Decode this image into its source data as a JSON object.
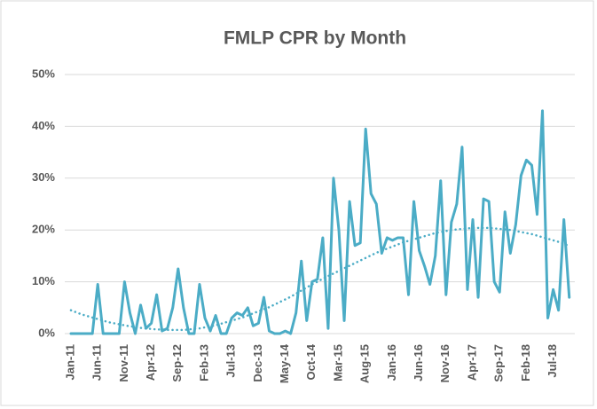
{
  "chart_data": {
    "type": "line",
    "title": "FMLP CPR by Month",
    "categories": [
      "Jan-11",
      null,
      null,
      null,
      null,
      "Jun-11",
      null,
      null,
      null,
      null,
      "Nov-11",
      null,
      null,
      null,
      null,
      "Apr-12",
      null,
      null,
      null,
      null,
      "Sep-12",
      null,
      null,
      null,
      null,
      "Feb-13",
      null,
      null,
      null,
      null,
      "Jul-13",
      null,
      null,
      null,
      null,
      "Dec-13",
      null,
      null,
      null,
      null,
      "May-14",
      null,
      null,
      null,
      null,
      "Oct-14",
      null,
      null,
      null,
      null,
      "Mar-15",
      null,
      null,
      null,
      null,
      "Aug-15",
      null,
      null,
      null,
      null,
      "Jan-16",
      null,
      null,
      null,
      null,
      "Jun-16",
      null,
      null,
      null,
      null,
      "Nov-16",
      null,
      null,
      null,
      null,
      "Apr-17",
      null,
      null,
      null,
      null,
      "Sep-17",
      null,
      null,
      null,
      null,
      "Feb-18",
      null,
      null,
      null,
      null,
      "Jul-18",
      null,
      null,
      null
    ],
    "series": [
      {
        "color": "#4bacc6",
        "values": [
          0,
          0,
          0,
          0,
          0,
          9.5,
          0,
          0,
          0,
          0,
          10,
          4,
          0,
          5.5,
          1,
          2,
          7.5,
          0.5,
          1,
          5,
          12.5,
          5,
          0,
          0,
          9.5,
          3,
          0.5,
          3.5,
          0,
          0,
          3,
          4,
          3.5,
          5,
          1.5,
          2,
          7,
          0.5,
          0,
          0,
          0.5,
          0,
          4,
          14,
          2.5,
          10,
          10.5,
          18.5,
          1,
          30,
          20,
          2.5,
          25.5,
          17,
          17.5,
          39.5,
          27,
          25,
          15.5,
          18.5,
          18,
          18.5,
          18.5,
          7.5,
          25.5,
          16,
          13,
          9.5,
          15,
          29.5,
          7.5,
          21.5,
          25,
          36,
          8.5,
          22,
          7,
          26,
          25.5,
          10,
          8,
          23.5,
          15.5,
          21,
          30.5,
          33.5,
          32.5,
          23,
          43,
          3,
          8.5,
          4.5,
          22,
          7
        ]
      },
      {
        "color": "#4bacc6",
        "dotted": true,
        "values": [
          4.5,
          4.1,
          3.7,
          3.4,
          3.1,
          2.8,
          2.5,
          2.2,
          2.0,
          1.8,
          1.6,
          1.4,
          1.3,
          1.1,
          1.0,
          0.9,
          0.8,
          0.8,
          0.7,
          0.7,
          0.7,
          0.7,
          0.8,
          0.9,
          1.0,
          1.2,
          1.4,
          1.6,
          1.9,
          2.2,
          2.5,
          2.8,
          3.1,
          3.5,
          3.9,
          4.3,
          4.7,
          5.1,
          5.6,
          6.1,
          6.6,
          7.1,
          7.7,
          8.3,
          8.9,
          9.5,
          10.0,
          10.6,
          11.1,
          11.6,
          12.1,
          12.6,
          13.1,
          13.6,
          14.1,
          14.6,
          15.1,
          15.6,
          16.0,
          16.4,
          16.8,
          17.2,
          17.6,
          17.9,
          18.2,
          18.5,
          18.8,
          19.1,
          19.4,
          19.6,
          19.8,
          20.0,
          20.1,
          20.2,
          20.3,
          20.4,
          20.4,
          20.4,
          20.4,
          20.3,
          20.2,
          20.1,
          20.0,
          19.8,
          19.6,
          19.4,
          19.2,
          18.9,
          18.6,
          18.3,
          18.0,
          17.7,
          17.3,
          16.9
        ]
      }
    ],
    "ylim": [
      0,
      50
    ],
    "yticks": [
      {
        "value": 0,
        "label": "0%"
      },
      {
        "value": 10,
        "label": "10%"
      },
      {
        "value": 20,
        "label": "20%"
      },
      {
        "value": 30,
        "label": "30%"
      },
      {
        "value": 40,
        "label": "40%"
      },
      {
        "value": 50,
        "label": "50%"
      }
    ],
    "grid": true
  }
}
